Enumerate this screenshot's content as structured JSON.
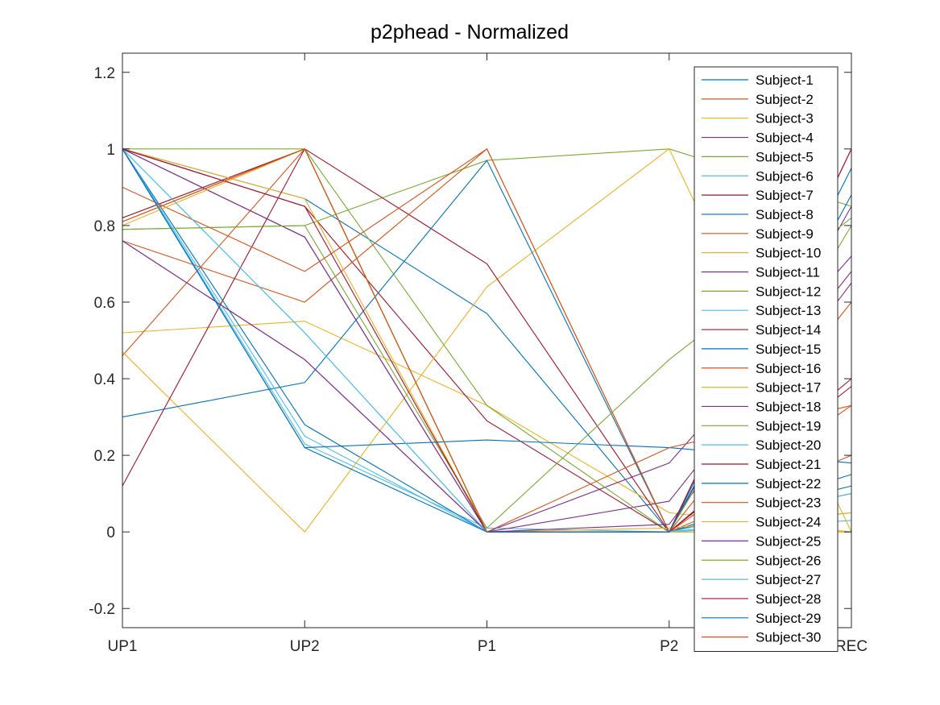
{
  "chart_data": {
    "type": "line",
    "title": "p2phead - Normalized",
    "categories": [
      "UP1",
      "UP2",
      "P1",
      "P2",
      "REC"
    ],
    "ylim": [
      -0.25,
      1.25
    ],
    "yticks": [
      -0.2,
      0,
      0.2,
      0.4,
      0.6,
      0.8,
      1,
      1.2
    ],
    "ytick_labels": [
      "-0.2",
      "0",
      "0.2",
      "0.4",
      "0.6",
      "0.8",
      "1",
      "1.2"
    ],
    "grid": false,
    "legend_position": "right",
    "series": [
      {
        "name": "Subject-1",
        "color": "#0072BD",
        "values": [
          1.0,
          0.87,
          0.57,
          0.0,
          0.95
        ]
      },
      {
        "name": "Subject-2",
        "color": "#D95319",
        "values": [
          0.81,
          1.0,
          0.0,
          0.0,
          0.1
        ]
      },
      {
        "name": "Subject-3",
        "color": "#EDB120",
        "values": [
          0.52,
          0.55,
          0.33,
          0.05,
          0.0
        ]
      },
      {
        "name": "Subject-4",
        "color": "#7E2F8E",
        "values": [
          0.76,
          0.45,
          0.0,
          0.18,
          0.72
        ]
      },
      {
        "name": "Subject-5",
        "color": "#77AC30",
        "values": [
          0.79,
          0.8,
          0.97,
          1.0,
          0.85
        ]
      },
      {
        "name": "Subject-6",
        "color": "#4DBEEE",
        "values": [
          1.0,
          0.23,
          0.01,
          0.0,
          0.1
        ]
      },
      {
        "name": "Subject-7",
        "color": "#A2142F",
        "values": [
          1.0,
          0.85,
          0.29,
          0.0,
          0.4
        ]
      },
      {
        "name": "Subject-8",
        "color": "#0072BD",
        "values": [
          1.0,
          0.28,
          0.0,
          0.0,
          0.15
        ]
      },
      {
        "name": "Subject-9",
        "color": "#D95319",
        "values": [
          0.46,
          1.0,
          0.0,
          0.0,
          0.2
        ]
      },
      {
        "name": "Subject-10",
        "color": "#EDB120",
        "values": [
          0.47,
          0.0,
          0.64,
          1.0,
          0.0
        ]
      },
      {
        "name": "Subject-11",
        "color": "#7E2F8E",
        "values": [
          1.0,
          0.77,
          0.0,
          0.08,
          0.68
        ]
      },
      {
        "name": "Subject-12",
        "color": "#77AC30",
        "values": [
          0.82,
          1.0,
          0.33,
          0.0,
          0.0
        ]
      },
      {
        "name": "Subject-13",
        "color": "#4DBEEE",
        "values": [
          1.0,
          0.52,
          0.0,
          0.0,
          0.05
        ]
      },
      {
        "name": "Subject-14",
        "color": "#A2142F",
        "values": [
          0.82,
          1.0,
          0.7,
          0.0,
          1.0
        ]
      },
      {
        "name": "Subject-15",
        "color": "#0072BD",
        "values": [
          0.3,
          0.39,
          0.97,
          0.0,
          0.12
        ]
      },
      {
        "name": "Subject-16",
        "color": "#D95319",
        "values": [
          0.76,
          0.6,
          1.0,
          0.0,
          0.33
        ]
      },
      {
        "name": "Subject-17",
        "color": "#EDB120",
        "values": [
          1.0,
          0.87,
          0.0,
          0.01,
          0.05
        ]
      },
      {
        "name": "Subject-18",
        "color": "#7E2F8E",
        "values": [
          1.0,
          0.77,
          0.0,
          0.0,
          0.85
        ]
      },
      {
        "name": "Subject-19",
        "color": "#77AC30",
        "values": [
          0.79,
          0.8,
          0.01,
          0.45,
          0.82
        ]
      },
      {
        "name": "Subject-20",
        "color": "#4DBEEE",
        "values": [
          1.0,
          0.25,
          0.0,
          0.0,
          0.03
        ]
      },
      {
        "name": "Subject-21",
        "color": "#A2142F",
        "values": [
          0.12,
          1.0,
          0.0,
          0.0,
          0.38
        ]
      },
      {
        "name": "Subject-22",
        "color": "#0072BD",
        "values": [
          1.0,
          0.22,
          0.24,
          0.22,
          0.18
        ]
      },
      {
        "name": "Subject-23",
        "color": "#D95319",
        "values": [
          0.9,
          0.68,
          1.0,
          0.0,
          0.6
        ]
      },
      {
        "name": "Subject-24",
        "color": "#EDB120",
        "values": [
          0.8,
          1.0,
          0.0,
          0.0,
          0.0
        ]
      },
      {
        "name": "Subject-25",
        "color": "#7E2F8E",
        "values": [
          0.76,
          0.45,
          0.0,
          0.02,
          0.65
        ]
      },
      {
        "name": "Subject-26",
        "color": "#77AC30",
        "values": [
          1.0,
          1.0,
          0.0,
          0.0,
          0.8
        ]
      },
      {
        "name": "Subject-27",
        "color": "#4DBEEE",
        "values": [
          1.0,
          0.52,
          0.0,
          0.0,
          0.1
        ]
      },
      {
        "name": "Subject-28",
        "color": "#A2142F",
        "values": [
          1.0,
          0.85,
          0.0,
          0.0,
          1.0
        ]
      },
      {
        "name": "Subject-29",
        "color": "#0072BD",
        "values": [
          1.0,
          0.22,
          0.0,
          0.0,
          0.88
        ]
      },
      {
        "name": "Subject-30",
        "color": "#D95319",
        "values": [
          0.81,
          1.0,
          0.0,
          0.22,
          0.33
        ]
      }
    ]
  }
}
